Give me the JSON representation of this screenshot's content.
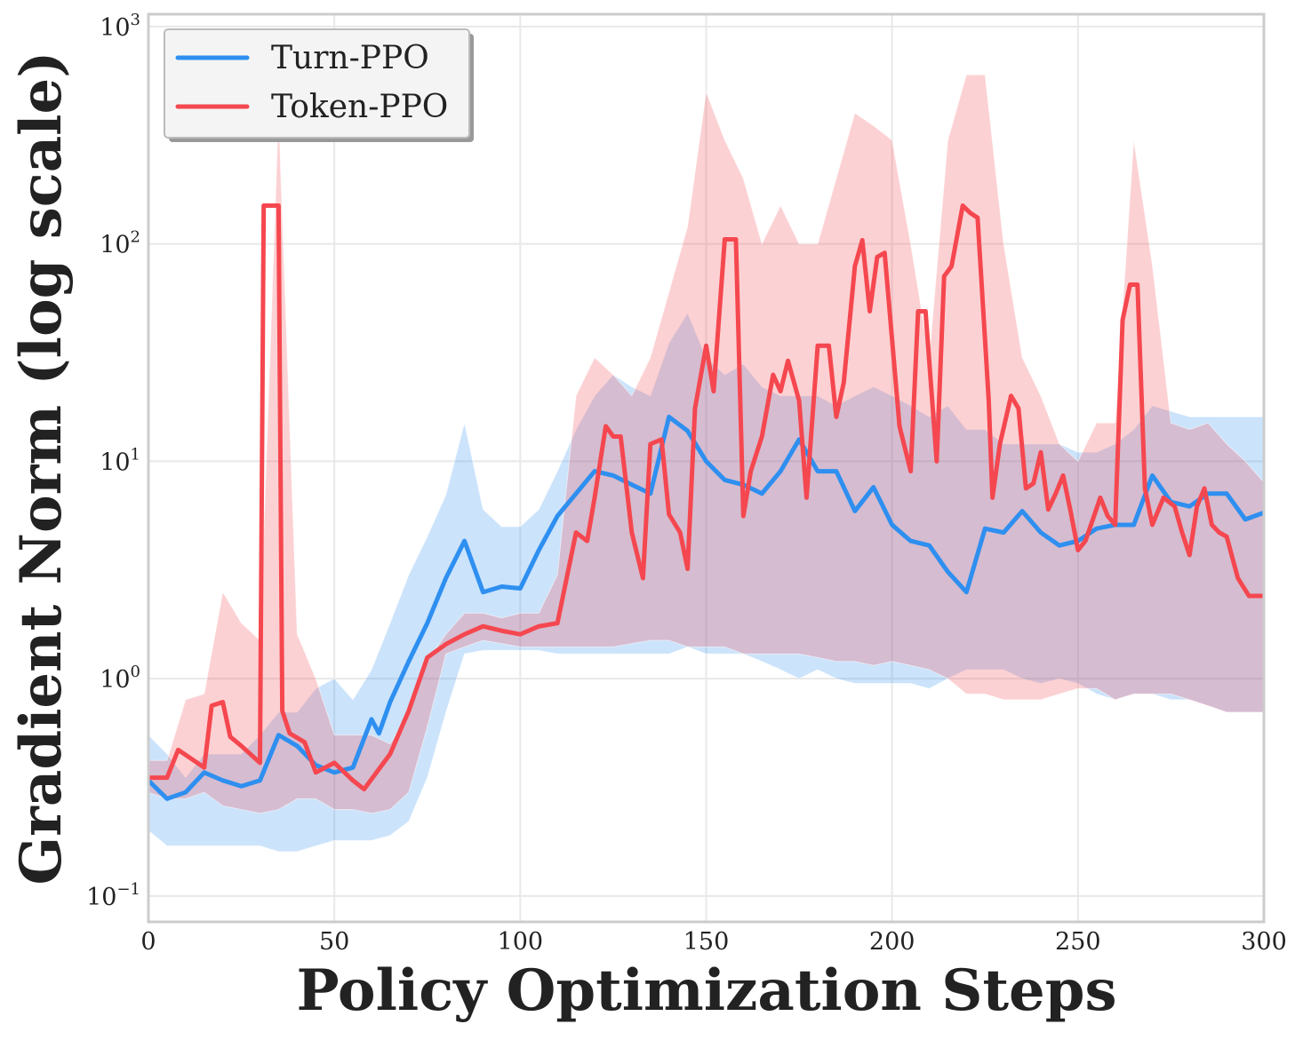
{
  "chart_data": {
    "type": "line",
    "title": "",
    "xlabel": "Policy Optimization Steps",
    "ylabel": "Gradient Norm (log scale)",
    "xlim": [
      0,
      300
    ],
    "ylim": [
      0.076,
      1140
    ],
    "yscale": "log",
    "grid": true,
    "legend_position": "top-left",
    "x_ticks": [
      "0",
      "50",
      "100",
      "150",
      "200",
      "250",
      "300"
    ],
    "x_tick_values": [
      0,
      50,
      100,
      150,
      200,
      250,
      300
    ],
    "y_ticks": [
      {
        "base": "10",
        "exp": "−1",
        "value": 0.1
      },
      {
        "base": "10",
        "exp": "0",
        "value": 1
      },
      {
        "base": "10",
        "exp": "1",
        "value": 10
      },
      {
        "base": "10",
        "exp": "2",
        "value": 100
      },
      {
        "base": "10",
        "exp": "3",
        "value": 1000
      }
    ],
    "series": [
      {
        "name": "Turn-PPO",
        "color": "#2e8ff0",
        "x": [
          0,
          5,
          10,
          15,
          20,
          25,
          30,
          35,
          40,
          45,
          50,
          55,
          60,
          62,
          65,
          70,
          75,
          80,
          85,
          90,
          95,
          100,
          105,
          110,
          115,
          120,
          125,
          130,
          135,
          140,
          145,
          150,
          155,
          160,
          165,
          170,
          175,
          180,
          185,
          190,
          195,
          200,
          205,
          210,
          215,
          220,
          225,
          230,
          235,
          240,
          245,
          250,
          255,
          260,
          265,
          270,
          275,
          280,
          285,
          290,
          295,
          300
        ],
        "values": [
          0.34,
          0.28,
          0.3,
          0.37,
          0.34,
          0.32,
          0.34,
          0.55,
          0.49,
          0.4,
          0.37,
          0.39,
          0.65,
          0.56,
          0.78,
          1.2,
          1.8,
          2.9,
          4.3,
          2.5,
          2.65,
          2.6,
          3.9,
          5.6,
          7.1,
          9.0,
          8.6,
          7.8,
          7.1,
          16,
          13.8,
          10,
          8.2,
          7.8,
          7.1,
          9,
          12.6,
          9,
          9,
          5.9,
          7.6,
          5.1,
          4.3,
          4.1,
          3.1,
          2.5,
          4.9,
          4.7,
          5.9,
          4.7,
          4.1,
          4.3,
          4.9,
          5.1,
          5.1,
          8.6,
          6.5,
          6.2,
          7.1,
          7.1,
          5.4,
          5.8
        ],
        "band_x": [
          0,
          5,
          10,
          15,
          20,
          25,
          30,
          35,
          40,
          45,
          50,
          55,
          60,
          65,
          70,
          75,
          80,
          85,
          90,
          95,
          100,
          105,
          110,
          115,
          120,
          125,
          130,
          135,
          140,
          145,
          150,
          155,
          160,
          165,
          170,
          175,
          180,
          185,
          190,
          195,
          200,
          205,
          210,
          215,
          220,
          225,
          230,
          235,
          240,
          245,
          250,
          255,
          260,
          265,
          270,
          275,
          280,
          285,
          290,
          295,
          300
        ],
        "band_upper": [
          0.55,
          0.45,
          0.35,
          0.45,
          0.45,
          0.45,
          0.55,
          0.7,
          0.7,
          0.9,
          1.0,
          0.8,
          1.1,
          1.8,
          3,
          4.5,
          7,
          15,
          6,
          5,
          5,
          6,
          9,
          14,
          20,
          25,
          22,
          20,
          35,
          48,
          30,
          25,
          28,
          22,
          20,
          20,
          20,
          18,
          20,
          22,
          20,
          18,
          16,
          18,
          14,
          14,
          12,
          12,
          12,
          12,
          11,
          11,
          12,
          14,
          18,
          17,
          16,
          16,
          16,
          16,
          16
        ],
        "band_lower": [
          0.2,
          0.17,
          0.17,
          0.17,
          0.17,
          0.17,
          0.17,
          0.16,
          0.16,
          0.17,
          0.18,
          0.18,
          0.18,
          0.19,
          0.22,
          0.35,
          0.7,
          1.3,
          1.35,
          1.35,
          1.35,
          1.35,
          1.3,
          1.3,
          1.3,
          1.3,
          1.3,
          1.3,
          1.3,
          1.4,
          1.3,
          1.3,
          1.3,
          1.2,
          1.1,
          1.0,
          1.1,
          1.0,
          0.95,
          0.95,
          0.95,
          0.95,
          0.9,
          1.0,
          1.1,
          1.1,
          1.1,
          1.0,
          0.95,
          1.0,
          0.95,
          0.85,
          0.8,
          0.85,
          0.85,
          0.8,
          0.8,
          0.75,
          0.7,
          0.7,
          0.7
        ]
      },
      {
        "name": "Token-PPO",
        "color": "#f5474f",
        "x": [
          0,
          5,
          8,
          15,
          17,
          20,
          22,
          25,
          30,
          31,
          35,
          36,
          38,
          42,
          45,
          50,
          55,
          58,
          65,
          70,
          75,
          80,
          85,
          90,
          95,
          100,
          105,
          110,
          115,
          118,
          120,
          123,
          125,
          127,
          130,
          133,
          135,
          138,
          140,
          143,
          145,
          147,
          150,
          152,
          155,
          158,
          160,
          162,
          165,
          168,
          170,
          172,
          175,
          177,
          180,
          183,
          185,
          187,
          190,
          192,
          194,
          196,
          198,
          202,
          205,
          207,
          209,
          212,
          214,
          216,
          219,
          221,
          223,
          226,
          227,
          229,
          232,
          234,
          236,
          238,
          240,
          242,
          244,
          246,
          248,
          250,
          252,
          254,
          256,
          258,
          260,
          262,
          264,
          266,
          268,
          270,
          273,
          276,
          278,
          280,
          282,
          284,
          286,
          288,
          290,
          293,
          296,
          300
        ],
        "values": [
          0.35,
          0.35,
          0.47,
          0.39,
          0.75,
          0.78,
          0.54,
          0.49,
          0.41,
          150,
          150,
          0.71,
          0.56,
          0.51,
          0.37,
          0.41,
          0.34,
          0.31,
          0.45,
          0.71,
          1.25,
          1.44,
          1.6,
          1.74,
          1.66,
          1.6,
          1.74,
          1.8,
          4.7,
          4.3,
          6.8,
          14.5,
          13,
          13,
          4.7,
          2.9,
          12,
          12.6,
          5.7,
          4.7,
          3.2,
          17.5,
          34,
          21,
          105,
          105,
          5.6,
          9,
          13,
          25,
          21,
          29,
          19,
          6.8,
          34,
          34,
          16,
          23,
          79,
          104,
          49,
          87,
          91,
          14.5,
          9,
          49,
          49,
          10,
          71,
          79,
          150,
          139,
          132,
          19,
          6.8,
          12,
          20,
          17.5,
          7.5,
          7.9,
          11,
          6,
          7.1,
          8.6,
          5.9,
          3.9,
          4.3,
          5.4,
          6.8,
          5.6,
          5.1,
          44.7,
          65,
          65,
          7.5,
          5.1,
          6.8,
          6.2,
          4.7,
          3.7,
          6.2,
          7.5,
          5.1,
          4.7,
          4.5,
          2.9,
          2.4,
          2.4
        ],
        "band_x": [
          0,
          5,
          10,
          15,
          20,
          25,
          30,
          35,
          40,
          45,
          50,
          55,
          60,
          65,
          70,
          75,
          80,
          85,
          90,
          95,
          100,
          105,
          110,
          115,
          120,
          125,
          130,
          135,
          140,
          145,
          150,
          155,
          160,
          165,
          170,
          175,
          180,
          185,
          190,
          195,
          200,
          205,
          210,
          215,
          220,
          225,
          230,
          235,
          240,
          245,
          250,
          255,
          260,
          265,
          270,
          275,
          280,
          285,
          290,
          295,
          300
        ],
        "band_upper": [
          0.42,
          0.42,
          0.8,
          0.85,
          2.5,
          1.8,
          1.5,
          400,
          1.6,
          1.0,
          0.55,
          0.55,
          0.55,
          0.5,
          0.7,
          1.2,
          1.6,
          2.0,
          2.0,
          1.9,
          2.0,
          2.0,
          3,
          20,
          30,
          25,
          20,
          30,
          60,
          120,
          500,
          300,
          200,
          100,
          150,
          100,
          100,
          200,
          400,
          350,
          300,
          100,
          30,
          300,
          600,
          600,
          100,
          30,
          20,
          12,
          10,
          15,
          15,
          300,
          80,
          15,
          14,
          15,
          12,
          10,
          8
        ],
        "band_lower": [
          0.3,
          0.28,
          0.28,
          0.3,
          0.26,
          0.25,
          0.24,
          0.25,
          0.28,
          0.28,
          0.25,
          0.25,
          0.24,
          0.25,
          0.3,
          0.6,
          1.3,
          1.4,
          1.5,
          1.45,
          1.4,
          1.4,
          1.4,
          1.4,
          1.4,
          1.4,
          1.45,
          1.5,
          1.5,
          1.4,
          1.4,
          1.4,
          1.3,
          1.3,
          1.3,
          1.3,
          1.25,
          1.2,
          1.2,
          1.15,
          1.2,
          1.15,
          1.1,
          1.0,
          0.85,
          0.85,
          0.8,
          0.8,
          0.8,
          0.85,
          0.9,
          0.9,
          0.8,
          0.85,
          0.85,
          0.85,
          0.8,
          0.75,
          0.7,
          0.7,
          0.7
        ]
      }
    ]
  }
}
